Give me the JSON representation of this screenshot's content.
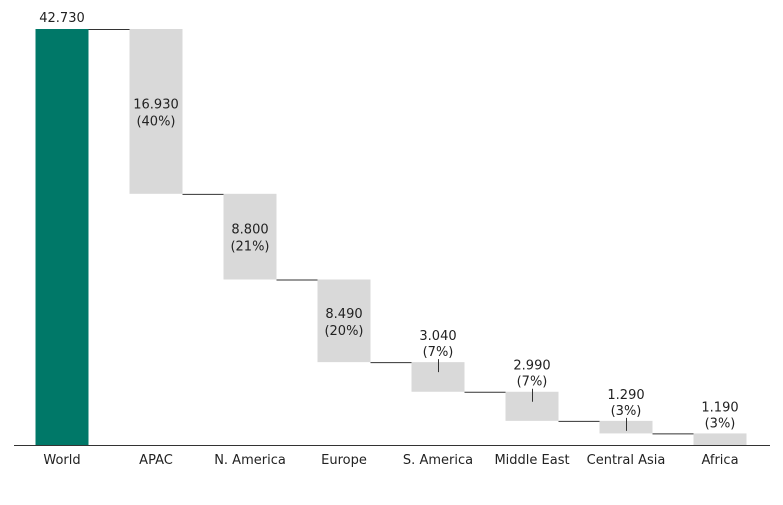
{
  "chart_data": {
    "type": "bar",
    "subtype": "waterfall",
    "title": "",
    "xlabel": "",
    "ylabel": "",
    "ylim": [
      0,
      42.73
    ],
    "grid": false,
    "total": {
      "category": "World",
      "value": 42.73,
      "label": "42.730",
      "color": "#007868"
    },
    "categories": [
      "APAC",
      "N. America",
      "Europe",
      "S. America",
      "Middle East",
      "Central Asia",
      "Africa"
    ],
    "values": [
      16.93,
      8.8,
      8.49,
      3.04,
      2.99,
      1.29,
      1.19
    ],
    "value_labels": [
      "16.930",
      "8.800",
      "8.490",
      "3.040",
      "2.990",
      "1.290",
      "1.190"
    ],
    "share_labels": [
      "(40%)",
      "(21%)",
      "(20%)",
      "(7%)",
      "(7%)",
      "(3%)",
      "(3%)"
    ],
    "step_color": "#d9d9d9",
    "connector_color": "#333333"
  }
}
